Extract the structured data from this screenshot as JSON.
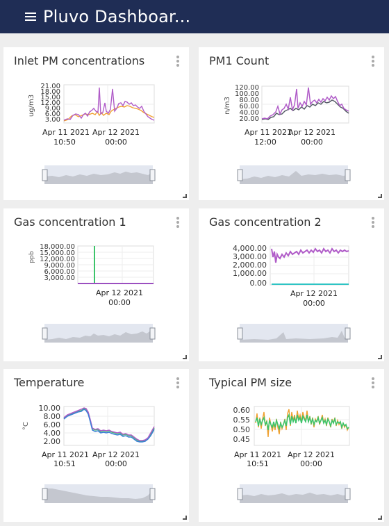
{
  "header": {
    "title": "Pluvo Dashboar..."
  },
  "cards": [
    {
      "title": "Inlet PM concentrations",
      "ylabel": "ug/m3",
      "yticks": [
        "21.00",
        "18.00",
        "15.00",
        "12.00",
        "9.00",
        "6.00",
        "3.00"
      ],
      "xticks": [
        {
          "line1": "Apr 11 2021",
          "line2": "10:50"
        },
        {
          "line1": "Apr 12 2021",
          "line2": "00:00"
        }
      ]
    },
    {
      "title": "PM1 Count",
      "ylabel": "n/m3",
      "yticks": [
        "120.00",
        "100.00",
        "80.00",
        "60.00",
        "40.00",
        "20.00"
      ],
      "xticks": [
        {
          "line1": "Apr 11 2021",
          "line2": "12:00"
        },
        {
          "line1": "Apr 12 2021",
          "line2": "00:00"
        }
      ]
    },
    {
      "title": "Gas concentration 1",
      "ylabel": "ppb",
      "yticks": [
        "18,000.00",
        "15,000.00",
        "12,000.00",
        "9,000.00",
        "6,000.00",
        "3,000.00"
      ],
      "xticks": [
        {
          "line1": "Apr 12 2021",
          "line2": "00:00"
        }
      ]
    },
    {
      "title": "Gas concentration 2",
      "ylabel": "",
      "yticks": [
        "4,000.00",
        "3,000.00",
        "2,000.00",
        "1,000.00",
        "0.00"
      ],
      "xticks": [
        {
          "line1": "Apr 12 2021",
          "line2": "00:00"
        }
      ]
    },
    {
      "title": "Temperature",
      "ylabel": "°C",
      "yticks": [
        "10.00",
        "8.00",
        "6.00",
        "4.00",
        "2.00"
      ],
      "xticks": [
        {
          "line1": "Apr 11 2021",
          "line2": "10:51"
        },
        {
          "line1": "Apr 12 2021",
          "line2": "00:00"
        }
      ]
    },
    {
      "title": "Typical PM size",
      "ylabel": "",
      "yticks": [
        "0.60",
        "0.55",
        "0.50",
        "0.45"
      ],
      "xticks": [
        {
          "line1": "Apr 11 2021",
          "line2": "10:51"
        },
        {
          "line1": "Apr 12 2021",
          "line2": "00:00"
        }
      ]
    }
  ],
  "colors": {
    "header_bg": "#1f2d55",
    "purple": "#b05cc8",
    "orange": "#f0a030",
    "dark_gray": "#555a66",
    "green": "#3cc46a",
    "teal": "#2ec4c4",
    "blue": "#3b7fd6",
    "navigator_fill": "#c8cbd3",
    "navigator_bg": "#e3e7f0"
  }
}
